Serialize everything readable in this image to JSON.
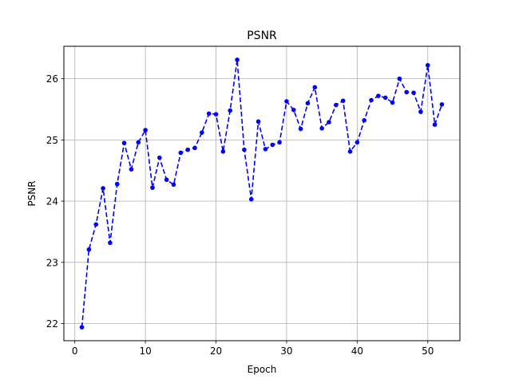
{
  "chart_data": {
    "type": "line",
    "title": "PSNR",
    "xlabel": "Epoch",
    "ylabel": "PSNR",
    "xlim": [
      -1.55,
      54.55
    ],
    "ylim": [
      21.72,
      26.53
    ],
    "xticks": [
      0,
      10,
      20,
      30,
      40,
      50
    ],
    "yticks": [
      22,
      23,
      24,
      25,
      26
    ],
    "grid": true,
    "series": [
      {
        "color": "#0000ff",
        "line_style": "dashed",
        "marker": "circle",
        "x": [
          1,
          2,
          3,
          4,
          5,
          6,
          7,
          8,
          9,
          10,
          11,
          12,
          13,
          14,
          15,
          16,
          17,
          18,
          19,
          20,
          21,
          22,
          23,
          24,
          25,
          26,
          27,
          28,
          29,
          30,
          31,
          32,
          33,
          34,
          35,
          36,
          37,
          38,
          39,
          40,
          41,
          42,
          43,
          44,
          45,
          46,
          47,
          48,
          49,
          50,
          51,
          52
        ],
        "y": [
          21.94,
          23.21,
          23.62,
          24.21,
          23.32,
          24.28,
          24.95,
          24.52,
          24.96,
          25.16,
          24.22,
          24.71,
          24.35,
          24.27,
          24.79,
          24.84,
          24.87,
          25.12,
          25.43,
          25.42,
          24.81,
          25.48,
          26.31,
          24.84,
          24.03,
          25.3,
          24.85,
          24.92,
          24.96,
          25.63,
          25.49,
          25.18,
          25.6,
          25.86,
          25.19,
          25.29,
          25.57,
          25.64,
          24.81,
          24.96,
          25.32,
          25.65,
          25.72,
          25.69,
          25.61,
          26.0,
          25.78,
          25.77,
          25.46,
          26.22,
          25.25,
          25.58
        ]
      }
    ]
  }
}
